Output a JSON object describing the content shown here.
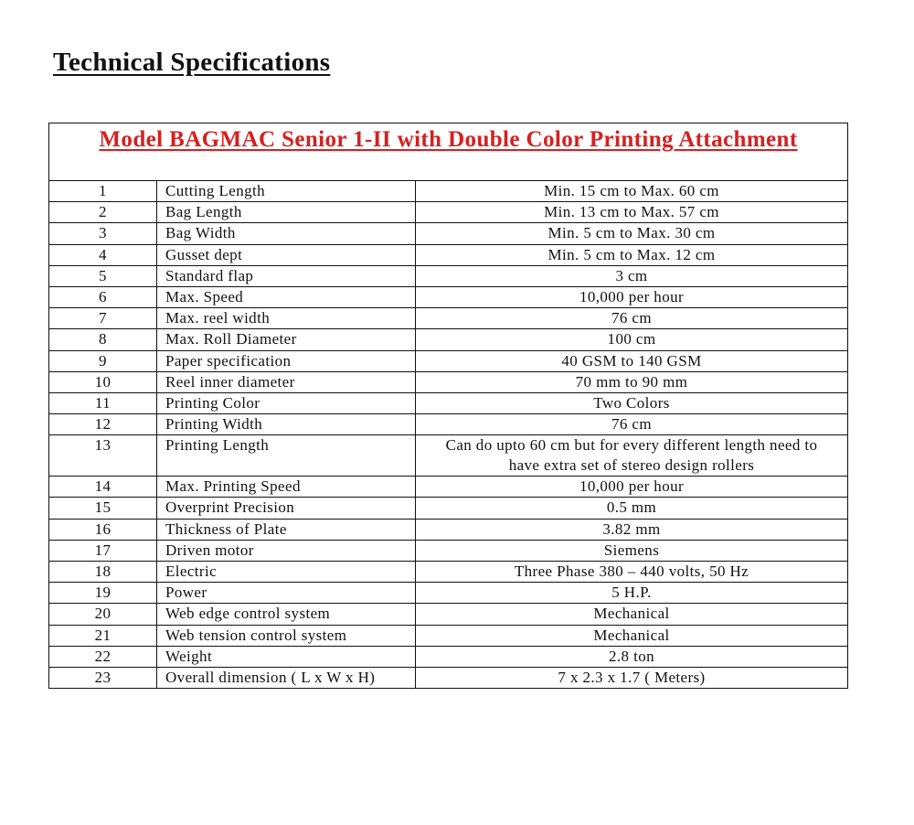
{
  "heading": "Technical Specifications",
  "table": {
    "title": "Model BAGMAC Senior 1-II with Double Color Printing Attachment",
    "title_color": "#d42121",
    "rows": [
      {
        "no": "1",
        "parameter": "Cutting Length",
        "value": "Min. 15 cm to Max. 60 cm"
      },
      {
        "no": "2",
        "parameter": "Bag Length",
        "value": "Min. 13 cm to Max. 57 cm"
      },
      {
        "no": "3",
        "parameter": "Bag Width",
        "value": "Min. 5 cm to Max. 30 cm"
      },
      {
        "no": "4",
        "parameter": "Gusset dept",
        "value": "Min. 5 cm to Max. 12 cm"
      },
      {
        "no": "5",
        "parameter": "Standard flap",
        "value": "3 cm"
      },
      {
        "no": "6",
        "parameter": "Max. Speed",
        "value": "10,000 per hour"
      },
      {
        "no": "7",
        "parameter": "Max. reel width",
        "value": "76 cm"
      },
      {
        "no": "8",
        "parameter": "Max. Roll Diameter",
        "value": "100 cm"
      },
      {
        "no": "9",
        "parameter": "Paper specification",
        "value": "40 GSM to 140 GSM"
      },
      {
        "no": "10",
        "parameter": "Reel inner diameter",
        "value": "70 mm to 90 mm"
      },
      {
        "no": "11",
        "parameter": "Printing Color",
        "value": "Two Colors"
      },
      {
        "no": "12",
        "parameter": "Printing Width",
        "value": "76 cm"
      },
      {
        "no": "13",
        "parameter": "Printing Length",
        "value": "Can do upto 60 cm but for every different length need to have extra set of stereo design rollers"
      },
      {
        "no": "14",
        "parameter": "Max. Printing Speed",
        "value": "10,000 per hour"
      },
      {
        "no": "15",
        "parameter": "Overprint Precision",
        "value": "0.5 mm"
      },
      {
        "no": "16",
        "parameter": "Thickness of Plate",
        "value": "3.82 mm"
      },
      {
        "no": "17",
        "parameter": "Driven motor",
        "value": "Siemens"
      },
      {
        "no": "18",
        "parameter": "Electric",
        "value": "Three Phase 380 – 440 volts, 50 Hz"
      },
      {
        "no": "19",
        "parameter": "Power",
        "value": "5 H.P."
      },
      {
        "no": "20",
        "parameter": "Web edge control system",
        "value": "Mechanical"
      },
      {
        "no": "21",
        "parameter": "Web tension control system",
        "value": "Mechanical"
      },
      {
        "no": "22",
        "parameter": "Weight",
        "value": "2.8 ton"
      },
      {
        "no": "23",
        "parameter": "Overall dimension ( L x W x H)",
        "value": "7 x 2.3 x 1.7 ( Meters)"
      }
    ]
  }
}
